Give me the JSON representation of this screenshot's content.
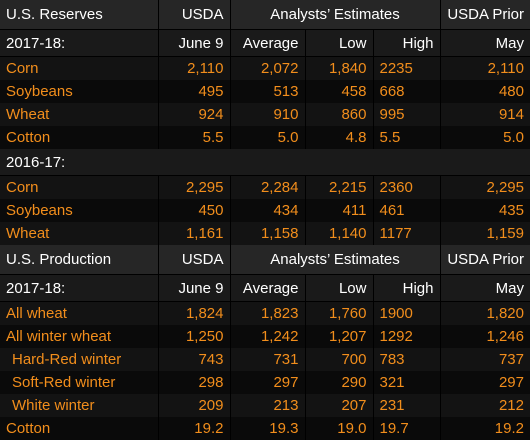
{
  "section1": {
    "header": {
      "title": "U.S. Reserves",
      "usda": "USDA",
      "estimates": "Analysts’ Estimates",
      "prior": "USDA Prior"
    },
    "subheader": {
      "year": "2017-18:",
      "usda": "June 9",
      "average": "Average",
      "low": "Low",
      "high": "High",
      "prior": "May"
    },
    "rows": [
      {
        "label": "Corn",
        "usda": "2,110",
        "average": "2,072",
        "low": "1,840",
        "high": "2235",
        "prior": "2,110"
      },
      {
        "label": "Soybeans",
        "usda": "495",
        "average": "513",
        "low": "458",
        "high": "668",
        "prior": "480"
      },
      {
        "label": "Wheat",
        "usda": "924",
        "average": "910",
        "low": "860",
        "high": "995",
        "prior": "914"
      },
      {
        "label": "Cotton",
        "usda": "5.5",
        "average": "5.0",
        "low": "4.8",
        "high": "5.5",
        "prior": "5.0"
      }
    ],
    "year2": "2016-17:",
    "rows2": [
      {
        "label": "Corn",
        "usda": "2,295",
        "average": "2,284",
        "low": "2,215",
        "high": "2360",
        "prior": "2,295"
      },
      {
        "label": "Soybeans",
        "usda": "450",
        "average": "434",
        "low": "411",
        "high": "461",
        "prior": "435"
      },
      {
        "label": "Wheat",
        "usda": "1,161",
        "average": "1,158",
        "low": "1,140",
        "high": "1177",
        "prior": "1,159"
      }
    ]
  },
  "section2": {
    "header": {
      "title": "U.S. Production",
      "usda": "USDA",
      "estimates": "Analysts’ Estimates",
      "prior": "USDA Prior"
    },
    "subheader": {
      "year": "2017-18:",
      "usda": "June 9",
      "average": "Average",
      "low": "Low",
      "high": "High",
      "prior": "May"
    },
    "rows": [
      {
        "label": "All wheat",
        "usda": "1,824",
        "average": "1,823",
        "low": "1,760",
        "high": "1900",
        "prior": "1,820"
      },
      {
        "label": "All winter wheat",
        "usda": "1,250",
        "average": "1,242",
        "low": "1,207",
        "high": "1292",
        "prior": "1,246"
      },
      {
        "label": "Hard-Red winter",
        "usda": "743",
        "average": "731",
        "low": "700",
        "high": "783",
        "prior": "737"
      },
      {
        "label": "Soft-Red winter",
        "usda": "298",
        "average": "297",
        "low": "290",
        "high": "321",
        "prior": "297"
      },
      {
        "label": "White winter",
        "usda": "209",
        "average": "213",
        "low": "207",
        "high": "231",
        "prior": "212"
      },
      {
        "label": "Cotton",
        "usda": "19.2",
        "average": "19.3",
        "low": "19.0",
        "high": "19.7",
        "prior": "19.2"
      }
    ]
  },
  "colors": {
    "background": "#000000",
    "header_bg": "#262626",
    "value_text": "#f28e1c",
    "header_text": "#ffffff"
  }
}
